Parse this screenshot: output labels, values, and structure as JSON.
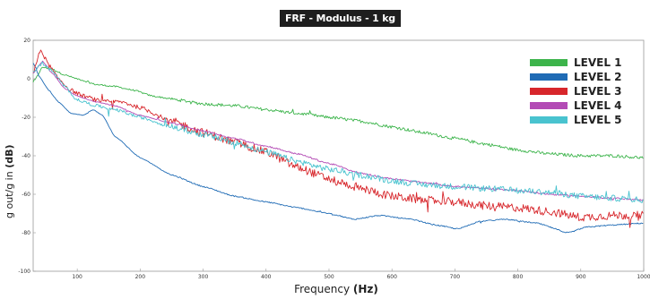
{
  "chart_data": {
    "type": "line",
    "title": "FRF - Modulus - 1 kg",
    "xlabel": {
      "prefix": "Frequency ",
      "unit": "(Hz)"
    },
    "ylabel": {
      "prefix": "g out/g in ",
      "unit": "(dB)"
    },
    "xlim": [
      30,
      1000
    ],
    "ylim": [
      -100,
      20
    ],
    "xticks": [
      100,
      200,
      300,
      400,
      500,
      600,
      700,
      800,
      900,
      1000
    ],
    "yticks": [
      20,
      0,
      -20,
      -40,
      -60,
      -80,
      -100
    ],
    "grid": false,
    "legend_position": "top-right",
    "series": [
      {
        "name": "LEVEL 1",
        "color": "#3cb44b",
        "noise": 0.8,
        "points": [
          [
            30,
            -2
          ],
          [
            45,
            6
          ],
          [
            60,
            5
          ],
          [
            80,
            2
          ],
          [
            100,
            0
          ],
          [
            130,
            -3
          ],
          [
            160,
            -4
          ],
          [
            190,
            -6
          ],
          [
            220,
            -9
          ],
          [
            260,
            -11
          ],
          [
            300,
            -13
          ],
          [
            350,
            -14
          ],
          [
            400,
            -16
          ],
          [
            450,
            -18
          ],
          [
            500,
            -20
          ],
          [
            550,
            -22
          ],
          [
            600,
            -25
          ],
          [
            650,
            -28
          ],
          [
            700,
            -31
          ],
          [
            750,
            -34
          ],
          [
            800,
            -37
          ],
          [
            850,
            -39
          ],
          [
            900,
            -40
          ],
          [
            950,
            -40
          ],
          [
            1000,
            -41
          ]
        ]
      },
      {
        "name": "LEVEL 2",
        "color": "#1f6bb5",
        "noise": 0.3,
        "points": [
          [
            30,
            8
          ],
          [
            40,
            1
          ],
          [
            55,
            -6
          ],
          [
            70,
            -12
          ],
          [
            90,
            -18
          ],
          [
            110,
            -19
          ],
          [
            125,
            -16
          ],
          [
            140,
            -19
          ],
          [
            160,
            -30
          ],
          [
            200,
            -41
          ],
          [
            250,
            -50
          ],
          [
            300,
            -56
          ],
          [
            350,
            -61
          ],
          [
            400,
            -64
          ],
          [
            450,
            -67
          ],
          [
            500,
            -70
          ],
          [
            540,
            -73
          ],
          [
            580,
            -71
          ],
          [
            630,
            -73
          ],
          [
            670,
            -76
          ],
          [
            705,
            -78
          ],
          [
            740,
            -74
          ],
          [
            780,
            -73
          ],
          [
            830,
            -75
          ],
          [
            880,
            -80
          ],
          [
            910,
            -77
          ],
          [
            950,
            -76
          ],
          [
            1000,
            -75
          ]
        ]
      },
      {
        "name": "LEVEL 3",
        "color": "#d7262b",
        "noise": 2.2,
        "points": [
          [
            30,
            3
          ],
          [
            42,
            15
          ],
          [
            55,
            7
          ],
          [
            70,
            0
          ],
          [
            90,
            -6
          ],
          [
            110,
            -9
          ],
          [
            140,
            -12
          ],
          [
            170,
            -12
          ],
          [
            200,
            -15
          ],
          [
            250,
            -22
          ],
          [
            300,
            -28
          ],
          [
            350,
            -33
          ],
          [
            400,
            -38
          ],
          [
            450,
            -46
          ],
          [
            500,
            -52
          ],
          [
            550,
            -57
          ],
          [
            600,
            -61
          ],
          [
            650,
            -63
          ],
          [
            700,
            -64
          ],
          [
            750,
            -66
          ],
          [
            800,
            -67
          ],
          [
            850,
            -69
          ],
          [
            900,
            -72
          ],
          [
            950,
            -71
          ],
          [
            1000,
            -71
          ]
        ]
      },
      {
        "name": "LEVEL 4",
        "color": "#b34bb5",
        "noise": 0.4,
        "points": [
          [
            30,
            3
          ],
          [
            45,
            9
          ],
          [
            60,
            3
          ],
          [
            80,
            -5
          ],
          [
            100,
            -9
          ],
          [
            130,
            -12
          ],
          [
            160,
            -14
          ],
          [
            200,
            -19
          ],
          [
            250,
            -23
          ],
          [
            300,
            -27
          ],
          [
            350,
            -31
          ],
          [
            400,
            -35
          ],
          [
            450,
            -39
          ],
          [
            500,
            -44
          ],
          [
            550,
            -49
          ],
          [
            600,
            -52
          ],
          [
            650,
            -54
          ],
          [
            700,
            -56
          ],
          [
            750,
            -57
          ],
          [
            800,
            -58
          ],
          [
            850,
            -60
          ],
          [
            900,
            -61
          ],
          [
            950,
            -62
          ],
          [
            1000,
            -63
          ]
        ]
      },
      {
        "name": "LEVEL 5",
        "color": "#49c3cf",
        "noise": 1.6,
        "points": [
          [
            30,
            4
          ],
          [
            45,
            8
          ],
          [
            60,
            4
          ],
          [
            80,
            -4
          ],
          [
            100,
            -11
          ],
          [
            130,
            -14
          ],
          [
            160,
            -16
          ],
          [
            200,
            -20
          ],
          [
            250,
            -25
          ],
          [
            300,
            -29
          ],
          [
            350,
            -33
          ],
          [
            400,
            -38
          ],
          [
            450,
            -43
          ],
          [
            500,
            -47
          ],
          [
            550,
            -50
          ],
          [
            600,
            -53
          ],
          [
            650,
            -55
          ],
          [
            700,
            -56
          ],
          [
            750,
            -57
          ],
          [
            800,
            -58
          ],
          [
            850,
            -59
          ],
          [
            900,
            -61
          ],
          [
            950,
            -62
          ],
          [
            1000,
            -63
          ]
        ]
      }
    ]
  }
}
